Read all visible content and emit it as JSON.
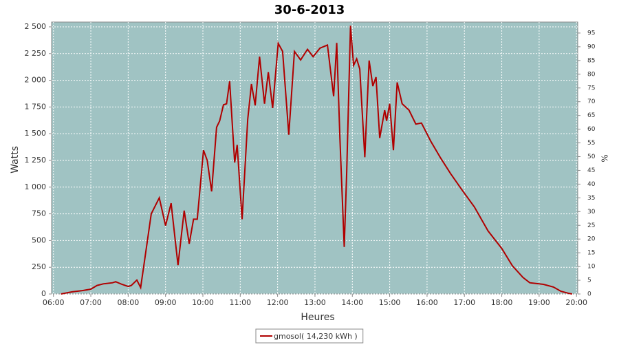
{
  "chart_data": {
    "type": "line",
    "title": "30-6-2013",
    "x_label": "Heures",
    "y_label": "Watts",
    "y2_label": "%",
    "x": [
      "06:12",
      "06:30",
      "06:45",
      "07:00",
      "07:10",
      "07:20",
      "07:35",
      "07:40",
      "07:50",
      "08:00",
      "08:05",
      "08:14",
      "08:20",
      "08:26",
      "08:37",
      "08:50",
      "09:00",
      "09:09",
      "09:20",
      "09:30",
      "09:38",
      "09:45",
      "09:51",
      "10:01",
      "10:07",
      "10:14",
      "10:22",
      "10:27",
      "10:33",
      "10:38",
      "10:43",
      "10:51",
      "10:55",
      "11:03",
      "11:12",
      "11:18",
      "11:24",
      "11:31",
      "11:39",
      "11:45",
      "11:52",
      "12:01",
      "12:08",
      "12:18",
      "12:27",
      "12:37",
      "12:48",
      "12:57",
      "13:08",
      "13:20",
      "13:30",
      "13:35",
      "13:40",
      "13:47",
      "13:51",
      "13:57",
      "14:02",
      "14:07",
      "14:12",
      "14:20",
      "14:27",
      "14:33",
      "14:38",
      "14:44",
      "14:52",
      "14:55",
      "15:00",
      "15:06",
      "15:12",
      "15:20",
      "15:31",
      "15:42",
      "15:51",
      "16:06",
      "16:21",
      "16:38",
      "16:56",
      "17:16",
      "17:38",
      "18:00",
      "18:17",
      "18:34",
      "18:45",
      "19:07",
      "19:23",
      "19:35",
      "19:48",
      "19:53"
    ],
    "series": [
      {
        "name": "gmosol( 14,230 kWh )",
        "color": "#b00000",
        "values": [
          0,
          20,
          30,
          45,
          80,
          95,
          105,
          115,
          90,
          70,
          80,
          130,
          60,
          300,
          750,
          900,
          640,
          850,
          270,
          780,
          470,
          700,
          700,
          1345,
          1250,
          960,
          1560,
          1620,
          1770,
          1780,
          1990,
          1230,
          1395,
          700,
          1635,
          1965,
          1765,
          2220,
          1780,
          2075,
          1740,
          2345,
          2270,
          1490,
          2270,
          2190,
          2290,
          2220,
          2300,
          2330,
          1850,
          2350,
          1460,
          440,
          1140,
          2510,
          2140,
          2200,
          2105,
          1280,
          2185,
          1945,
          2030,
          1460,
          1720,
          1620,
          1780,
          1345,
          1980,
          1780,
          1720,
          1590,
          1600,
          1430,
          1280,
          1125,
          975,
          815,
          590,
          425,
          265,
          155,
          105,
          90,
          65,
          25,
          5,
          0
        ]
      }
    ],
    "xlim": [
      "05:57",
      "20:02"
    ],
    "xticks": [
      "06:00",
      "07:00",
      "08:00",
      "09:00",
      "10:00",
      "11:00",
      "12:00",
      "13:00",
      "14:00",
      "15:00",
      "16:00",
      "17:00",
      "18:00",
      "19:00",
      "20:00"
    ],
    "ylim": [
      0,
      2545
    ],
    "yticks": [
      0,
      250,
      500,
      750,
      {
        "value": 1000,
        "label": "1 000"
      },
      {
        "value": 1250,
        "label": "1 250"
      },
      {
        "value": 1500,
        "label": "1 500"
      },
      {
        "value": 1750,
        "label": "1 750"
      },
      {
        "value": 2000,
        "label": "2 000"
      },
      {
        "value": 2250,
        "label": "2 250"
      },
      {
        "value": 2500,
        "label": "2 500"
      }
    ],
    "y2lim": [
      0,
      99
    ],
    "y2ticks": [
      0,
      5,
      10,
      15,
      20,
      25,
      30,
      35,
      40,
      45,
      50,
      55,
      60,
      65,
      70,
      75,
      80,
      85,
      90,
      95
    ],
    "grid": true,
    "background": "#a0c3c3",
    "legend": "bottom"
  }
}
